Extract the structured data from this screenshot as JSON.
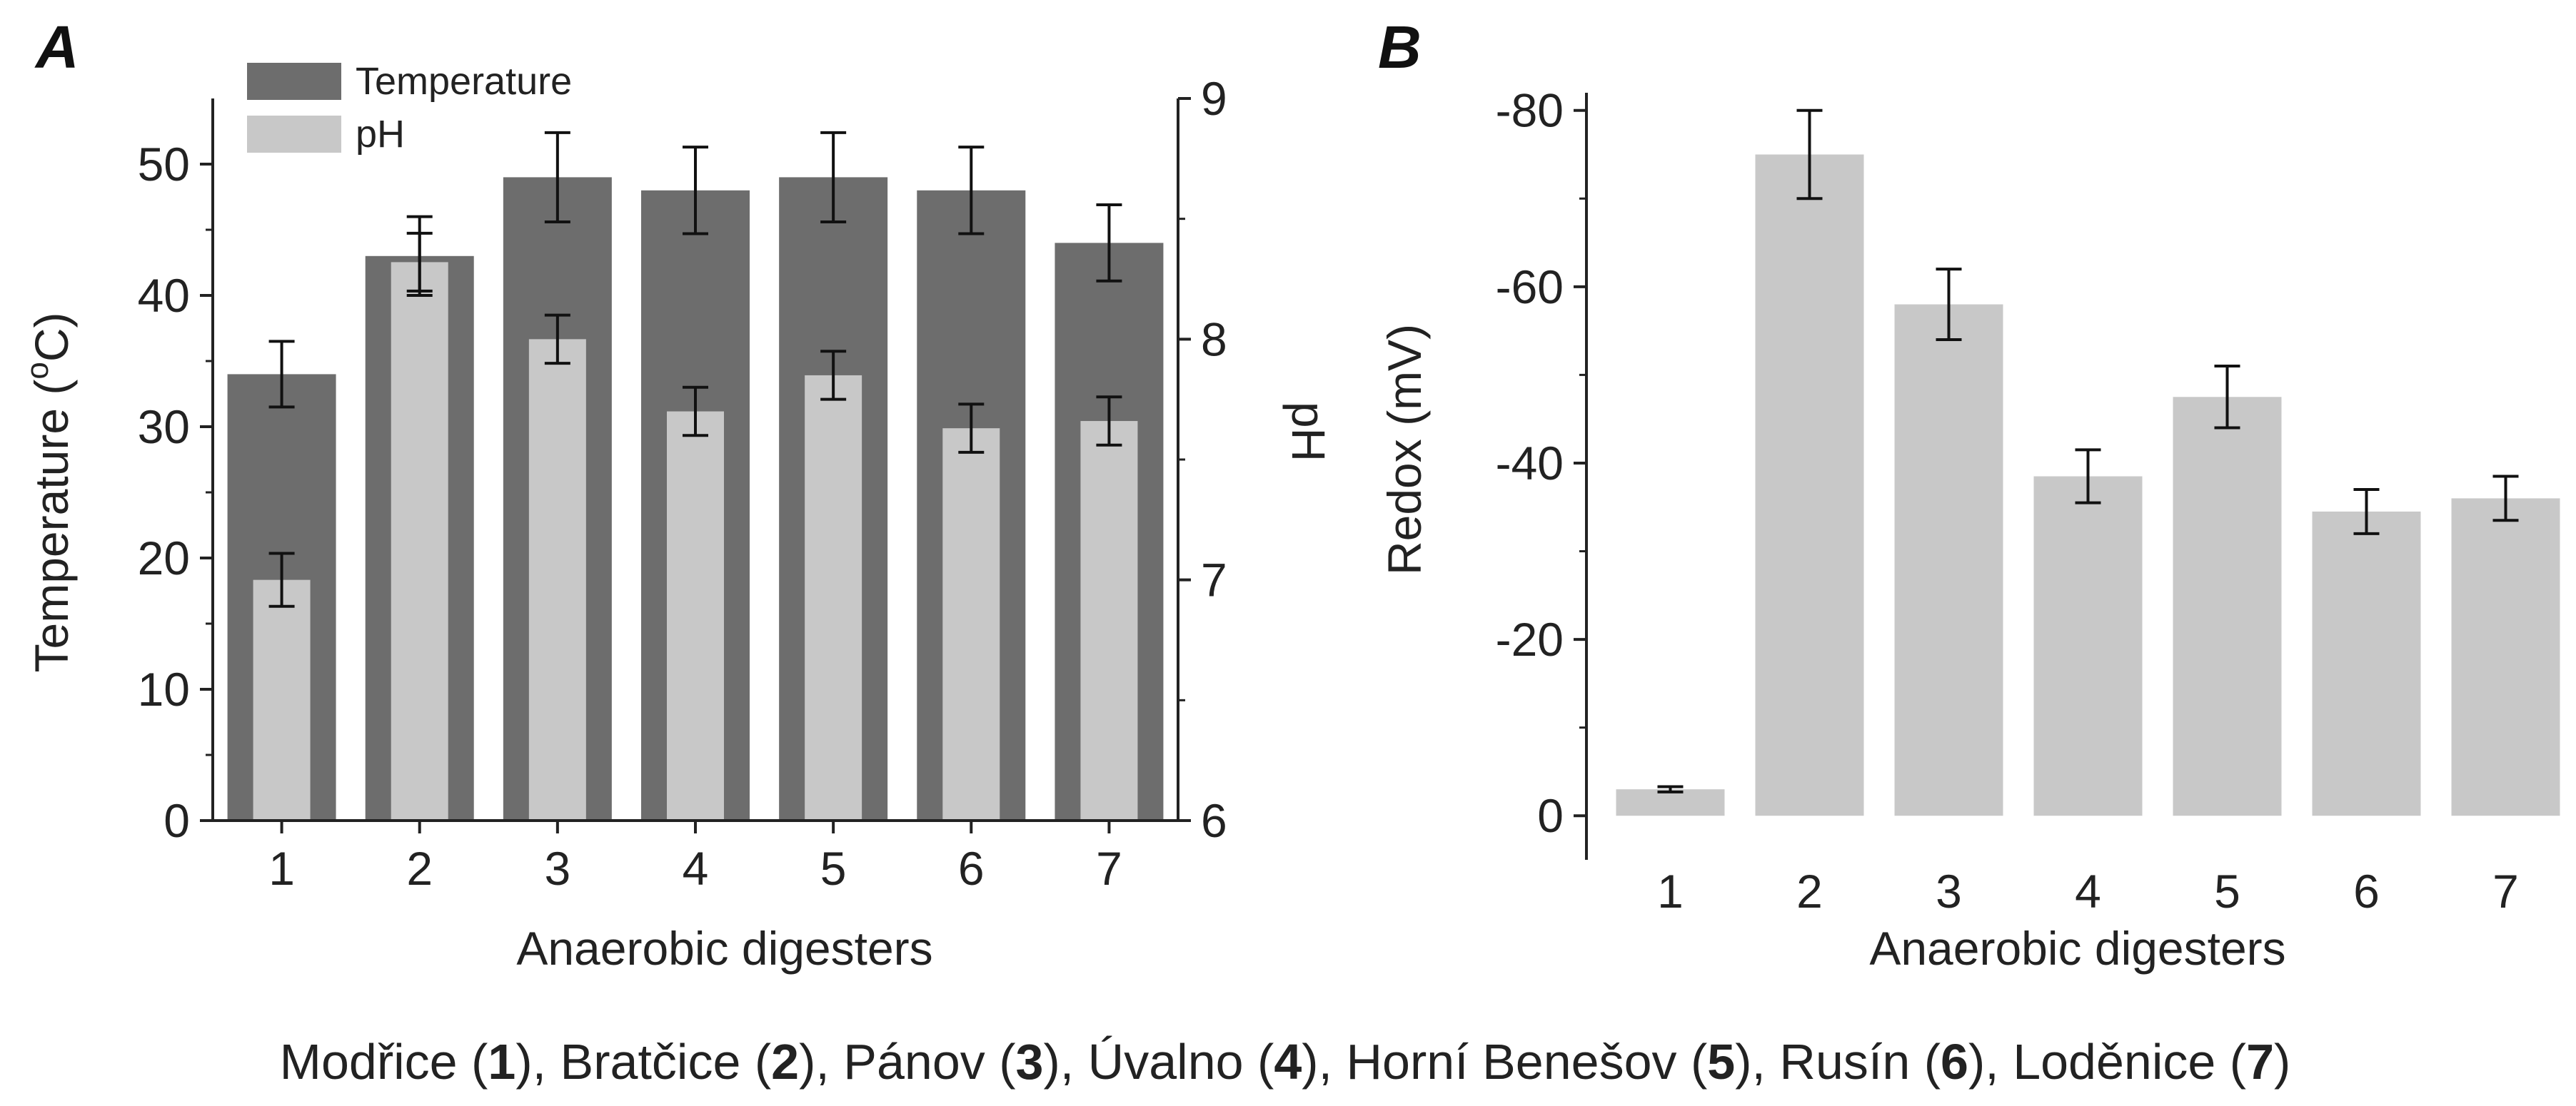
{
  "colors": {
    "temperature": "#6d6d6d",
    "ph": "#c8c8c8",
    "redox": "#c8c8c8",
    "axis": "#222222",
    "error": "#111111"
  },
  "chart_data": [
    {
      "type": "bar",
      "panel": "A",
      "title": "",
      "xlabel": "Anaerobic digesters",
      "ylabel": "Temperature (°C)",
      "ylabel_parts": {
        "pre": "Temperature (",
        "sup": "o",
        "post": "C)"
      },
      "y2label": "pH",
      "categories": [
        "1",
        "2",
        "3",
        "4",
        "5",
        "6",
        "7"
      ],
      "ylim": [
        0,
        55
      ],
      "yticks": [
        "0",
        "10",
        "20",
        "30",
        "40",
        "50"
      ],
      "y2lim": [
        6,
        9
      ],
      "y2ticks": [
        "6",
        "7",
        "8",
        "9"
      ],
      "legend": {
        "placement": "top-left",
        "entries": [
          "Temperature",
          "pH"
        ]
      },
      "series": [
        {
          "name": "Temperature",
          "axis": "left",
          "values": [
            34,
            43,
            49,
            48,
            49,
            48,
            44
          ],
          "errors": [
            2.5,
            3,
            3.4,
            3.3,
            3.4,
            3.3,
            2.9
          ]
        },
        {
          "name": "pH",
          "axis": "right",
          "values": [
            7.0,
            8.32,
            8.0,
            7.7,
            7.85,
            7.63,
            7.66
          ],
          "errors": [
            0.11,
            0.12,
            0.1,
            0.1,
            0.1,
            0.1,
            0.1
          ]
        }
      ]
    },
    {
      "type": "bar",
      "panel": "B",
      "title": "",
      "xlabel": "Anaerobic digesters",
      "ylabel": "Redox (mV)",
      "categories": [
        "1",
        "2",
        "3",
        "4",
        "5",
        "6",
        "7"
      ],
      "ylim": [
        5,
        -82
      ],
      "yticks": [
        "0",
        "-20",
        "-40",
        "-60",
        "-80"
      ],
      "series": [
        {
          "name": "Redox",
          "values": [
            -3,
            -75,
            -58,
            -38.5,
            -47.5,
            -34.5,
            -36
          ],
          "errors": [
            0.3,
            5,
            4,
            3,
            3.5,
            2.5,
            2.5
          ]
        }
      ]
    }
  ],
  "caption": [
    {
      "text": "Modřice (",
      "bold": false
    },
    {
      "text": "1",
      "bold": true
    },
    {
      "text": "), Bratčice (",
      "bold": false
    },
    {
      "text": "2",
      "bold": true
    },
    {
      "text": "), Pánov (",
      "bold": false
    },
    {
      "text": "3",
      "bold": true
    },
    {
      "text": "), Úvalno (",
      "bold": false
    },
    {
      "text": "4",
      "bold": true
    },
    {
      "text": "), Horní Benešov (",
      "bold": false
    },
    {
      "text": "5",
      "bold": true
    },
    {
      "text": "), Rusín (",
      "bold": false
    },
    {
      "text": "6",
      "bold": true
    },
    {
      "text": "), Loděnice (",
      "bold": false
    },
    {
      "text": "7",
      "bold": true
    },
    {
      "text": ")",
      "bold": false
    }
  ]
}
